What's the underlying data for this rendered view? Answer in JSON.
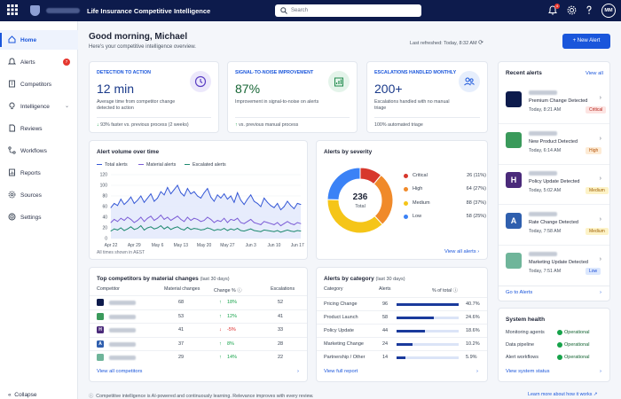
{
  "app": {
    "title": "Life Insurance Competitive Intelligence",
    "search_placeholder": "Search",
    "notification_count": "4",
    "avatar_initials": "MM"
  },
  "nav": [
    {
      "label": "Home",
      "icon": "home-icon",
      "active": true
    },
    {
      "label": "Alerts",
      "icon": "bell-icon",
      "count": "7"
    },
    {
      "label": "Competitors",
      "icon": "building-icon"
    },
    {
      "label": "Intelligence",
      "icon": "bulb-icon",
      "expandable": true
    },
    {
      "label": "Reviews",
      "icon": "document-icon"
    },
    {
      "label": "Workflows",
      "icon": "workflow-icon"
    },
    {
      "label": "Reports",
      "icon": "report-icon"
    },
    {
      "label": "Sources",
      "icon": "gear-icon"
    },
    {
      "label": "Settings",
      "icon": "settings-icon"
    }
  ],
  "collapse_label": "Collapse",
  "header": {
    "greeting": "Good morning, Michael",
    "subtitle": "Here's your competitive intelligence overview.",
    "last_refreshed": "Last refreshed: Today, 8:32 AM",
    "new_alert_label": "+ New Alert"
  },
  "kpis": [
    {
      "title": "DETECTION TO ACTION",
      "value": "12 min",
      "description": "Average time from competitor change detected to action",
      "footer": "93% faster vs. previous process (2 weeks)",
      "trend": "down",
      "icon": "clock-icon"
    },
    {
      "title": "SIGNAL-TO-NOISE IMPROVEMENT",
      "value": "87%",
      "description": "Improvement in signal-to-noise on alerts",
      "footer": "vs. previous manual process",
      "trend": "up",
      "icon": "bar-chart-icon"
    },
    {
      "title": "ESCALATIONS HANDLED MONTHLY",
      "value": "200+",
      "description": "Escalations handled with no manual triage",
      "footer": "100% automated triage",
      "trend": "none",
      "icon": "people-icon"
    }
  ],
  "volume_chart": {
    "title": "Alert volume over time",
    "legend": [
      "Total alerts",
      "Material alerts",
      "Escalated alerts"
    ],
    "footnote": "All times shown in AEST",
    "yticks": [
      "0",
      "20",
      "40",
      "60",
      "80",
      "100",
      "120"
    ],
    "xticks": [
      "Apr 22",
      "Apr 29",
      "May 6",
      "May 13",
      "May 20",
      "May 27",
      "Jun 3",
      "Jun 10",
      "Jun 17"
    ]
  },
  "chart_data": {
    "type": "line",
    "ylim": [
      0,
      120
    ],
    "x": [
      "Apr 22",
      "Apr 23",
      "Apr 24",
      "Apr 25",
      "Apr 26",
      "Apr 27",
      "Apr 28",
      "Apr 29",
      "Apr 30",
      "May 1",
      "May 2",
      "May 3",
      "May 4",
      "May 5",
      "May 6",
      "May 7",
      "May 8",
      "May 9",
      "May 10",
      "May 11",
      "May 12",
      "May 13",
      "May 14",
      "May 15",
      "May 16",
      "May 17",
      "May 18",
      "May 19",
      "May 20",
      "May 21",
      "May 22",
      "May 23",
      "May 24",
      "May 25",
      "May 26",
      "May 27",
      "May 28",
      "May 29",
      "May 30",
      "May 31",
      "Jun 1",
      "Jun 2",
      "Jun 3",
      "Jun 4",
      "Jun 5",
      "Jun 6",
      "Jun 7",
      "Jun 8",
      "Jun 9",
      "Jun 10",
      "Jun 11",
      "Jun 12",
      "Jun 13",
      "Jun 14",
      "Jun 15",
      "Jun 16",
      "Jun 17",
      "Jun 18"
    ],
    "series": [
      {
        "name": "Total alerts",
        "color": "#3558d6",
        "values": [
          58,
          66,
          62,
          74,
          64,
          70,
          78,
          66,
          72,
          80,
          68,
          76,
          84,
          70,
          76,
          88,
          82,
          96,
          84,
          92,
          100,
          86,
          80,
          94,
          84,
          88,
          80,
          76,
          86,
          94,
          78,
          70,
          82,
          76,
          84,
          74,
          80,
          68,
          86,
          72,
          64,
          74,
          82,
          70,
          66,
          60,
          76,
          68,
          62,
          58,
          66,
          54,
          60,
          70,
          62,
          56,
          66,
          64
        ]
      },
      {
        "name": "Material alerts",
        "color": "#7b5cd6",
        "values": [
          30,
          36,
          32,
          38,
          34,
          40,
          36,
          30,
          34,
          40,
          32,
          38,
          42,
          34,
          38,
          44,
          36,
          40,
          34,
          38,
          42,
          36,
          32,
          40,
          34,
          38,
          36,
          32,
          34,
          40,
          36,
          30,
          34,
          32,
          38,
          30,
          36,
          34,
          38,
          30,
          28,
          32,
          36,
          30,
          28,
          26,
          32,
          30,
          28,
          26,
          30,
          24,
          28,
          32,
          28,
          26,
          30,
          28
        ]
      },
      {
        "name": "Escalated alerts",
        "color": "#1f8a70",
        "values": [
          14,
          18,
          16,
          20,
          15,
          18,
          22,
          17,
          19,
          24,
          16,
          20,
          22,
          18,
          20,
          24,
          18,
          22,
          17,
          20,
          22,
          18,
          16,
          21,
          17,
          19,
          18,
          16,
          17,
          20,
          18,
          15,
          17,
          16,
          19,
          15,
          18,
          16,
          19,
          15,
          14,
          16,
          18,
          15,
          14,
          13,
          16,
          15,
          14,
          13,
          15,
          12,
          14,
          16,
          14,
          13,
          15,
          14
        ]
      }
    ]
  },
  "severity": {
    "title": "Alerts by severity",
    "total": "236",
    "total_label": "Total",
    "items": [
      {
        "name": "Critical",
        "value": 26,
        "pct": "26 (11%)",
        "color": "#d7372c"
      },
      {
        "name": "High",
        "value": 64,
        "pct": "64 (27%)",
        "color": "#f08a2a"
      },
      {
        "name": "Medium",
        "value": 88,
        "pct": "88 (37%)",
        "color": "#f5c518"
      },
      {
        "name": "Low",
        "value": 58,
        "pct": "58 (25%)",
        "color": "#3b82f6"
      }
    ],
    "link": "View all alerts"
  },
  "competitors": {
    "title": "Top competitors by material changes",
    "period": "(last 30 days)",
    "headers": [
      "Competitor",
      "Material changes",
      "Change %",
      "Escalations"
    ],
    "rows": [
      {
        "logo_color": "#0d1b4c",
        "logo_text": "",
        "changes": "68",
        "change": "18%",
        "dir": "up",
        "escalations": "52"
      },
      {
        "logo_color": "#3a9a5b",
        "logo_text": "",
        "changes": "53",
        "change": "12%",
        "dir": "up",
        "escalations": "41"
      },
      {
        "logo_color": "#4a2a7a",
        "logo_text": "H",
        "changes": "41",
        "change": "-5%",
        "dir": "down",
        "escalations": "33"
      },
      {
        "logo_color": "#2f5fae",
        "logo_text": "A",
        "changes": "37",
        "change": "8%",
        "dir": "up",
        "escalations": "28"
      },
      {
        "logo_color": "#6fb59a",
        "logo_text": "",
        "changes": "29",
        "change": "14%",
        "dir": "up",
        "escalations": "22"
      }
    ],
    "link": "View all competitors"
  },
  "categories": {
    "title": "Alerts by category",
    "period": "(last 30 days)",
    "headers": [
      "Category",
      "Alerts",
      "% of total"
    ],
    "rows": [
      {
        "name": "Pricing Change",
        "alerts": "96",
        "pct": "40.7%",
        "share": 0.407
      },
      {
        "name": "Product Launch",
        "alerts": "58",
        "pct": "24.6%",
        "share": 0.246
      },
      {
        "name": "Policy Update",
        "alerts": "44",
        "pct": "18.6%",
        "share": 0.186
      },
      {
        "name": "Marketing Change",
        "alerts": "24",
        "pct": "10.2%",
        "share": 0.102
      },
      {
        "name": "Partnership / Other",
        "alerts": "14",
        "pct": "5.9%",
        "share": 0.059
      }
    ],
    "link": "View full report"
  },
  "recent": {
    "title": "Recent alerts",
    "view_all": "View all",
    "go_to": "Go to Alerts",
    "items": [
      {
        "title": "Premium Change Detected",
        "time": "Today, 8:21 AM",
        "priority": "Critical",
        "pri_color": "#b4231a",
        "pri_bg": "#fde4e2",
        "icon_color": "#0d1b4c",
        "icon_text": ""
      },
      {
        "title": "New Product Detected",
        "time": "Today, 6:14 AM",
        "priority": "High",
        "pri_color": "#b45309",
        "pri_bg": "#fdebd5",
        "icon_color": "#3a9a5b",
        "icon_text": ""
      },
      {
        "title": "Policy Update Detected",
        "time": "Today, 5:02 AM",
        "priority": "Medium",
        "pri_color": "#a16207",
        "pri_bg": "#fdf3c7",
        "icon_color": "#4a2a7a",
        "icon_text": "H"
      },
      {
        "title": "Rate Change Detected",
        "time": "Today, 7:58 AM",
        "priority": "Medium",
        "pri_color": "#a16207",
        "pri_bg": "#fdf3c7",
        "icon_color": "#2f5fae",
        "icon_text": "A"
      },
      {
        "title": "Marketing Update Detected",
        "time": "Today, 7:51 AM",
        "priority": "Low",
        "pri_color": "#1d4ed8",
        "pri_bg": "#dbe7fd",
        "icon_color": "#6fb59a",
        "icon_text": ""
      }
    ]
  },
  "health": {
    "title": "System health",
    "rows": [
      {
        "name": "Monitoring agents",
        "status": "Operational"
      },
      {
        "name": "Data pipeline",
        "status": "Operational"
      },
      {
        "name": "Alert workflows",
        "status": "Operational"
      }
    ],
    "link": "View system status"
  },
  "footer": {
    "note": "Competitive intelligence is AI-powered and continuously learning. Relevance improves with every review.",
    "link": "Learn more about how it works"
  }
}
